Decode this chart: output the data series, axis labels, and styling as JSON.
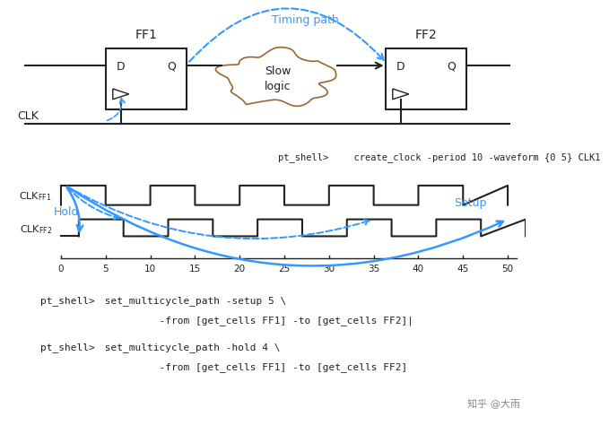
{
  "bg_color": "#ffffff",
  "ff1_label": "FF1",
  "ff2_label": "FF2",
  "slow_logic_label": "Slow\nlogic",
  "timing_path_label": "Timing path",
  "clk_label": "CLK",
  "hold_label": "Hold",
  "setup_label": "Setup",
  "cmd1_prompt": "pt_shell>",
  "cmd1_code": "  create_clock -period 10 -waveform {0 5} CLK1",
  "cmd2_prompt": "pt_shell>",
  "cmd2_code": " set_multicycle_path -setup 5 \\",
  "cmd2b": "          -from [get_cells FF1] -to [get_cells FF2]|",
  "cmd3_prompt": "pt_shell>",
  "cmd3_code": " set_multicycle_path -hold 4 \\",
  "cmd3b": "          -from [get_cells FF1] -to [get_cells FF2]",
  "watermark": "知乎 @大雨",
  "blue": "#3399FF",
  "black": "#222222",
  "gray": "#555555",
  "cloud_edge": "#996633"
}
